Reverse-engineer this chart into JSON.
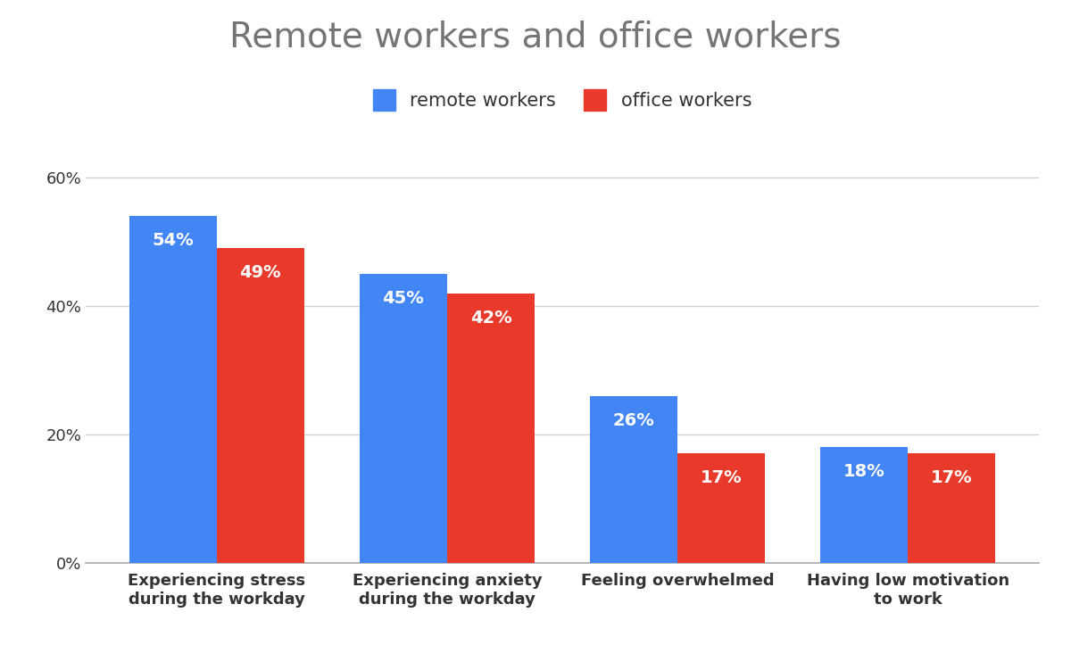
{
  "title": "Remote workers and office workers",
  "title_fontsize": 28,
  "title_color": "#757575",
  "categories": [
    "Experiencing stress\nduring the workday",
    "Experiencing anxiety\nduring the workday",
    "Feeling overwhelmed",
    "Having low motivation\nto work"
  ],
  "remote_values": [
    54,
    45,
    26,
    18
  ],
  "office_values": [
    49,
    42,
    17,
    17
  ],
  "remote_color": "#4285F4",
  "office_color": "#E8392A",
  "remote_label": "remote workers",
  "office_label": "office workers",
  "ylim": [
    0,
    65
  ],
  "yticks": [
    0,
    20,
    40,
    60
  ],
  "ytick_labels": [
    "0%",
    "20%",
    "40%",
    "60%"
  ],
  "bar_width": 0.38,
  "label_fontsize": 14,
  "tick_label_fontsize": 13,
  "legend_fontsize": 15,
  "background_color": "#ffffff",
  "grid_color": "#d0d0d0",
  "label_text_color": "#ffffff",
  "axis_text_color": "#333333"
}
